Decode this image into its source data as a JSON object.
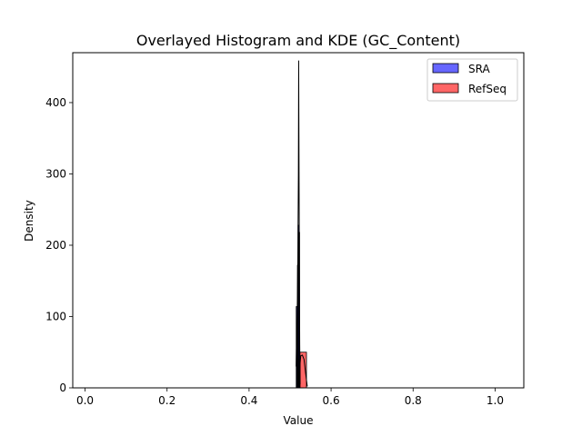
{
  "chart_data": {
    "type": "bar",
    "title": "Overlayed Histogram and KDE (GC_Content)",
    "xlabel": "Value",
    "ylabel": "Density",
    "xlim": [
      -0.03,
      1.07
    ],
    "ylim": [
      0,
      470
    ],
    "xticks": [
      0.0,
      0.2,
      0.4,
      0.6,
      0.8,
      1.0
    ],
    "xtick_labels": [
      "0.0",
      "0.2",
      "0.4",
      "0.6",
      "0.8",
      "1.0"
    ],
    "yticks": [
      0,
      100,
      200,
      300,
      400
    ],
    "ytick_labels": [
      "0",
      "100",
      "200",
      "300",
      "400"
    ],
    "legend": {
      "placement": "top-right"
    },
    "grid": false,
    "series": [
      {
        "name": "SRA",
        "color": "#0000ff",
        "bins": [
          {
            "x0": 0.515,
            "x1": 0.5165,
            "value": 114
          },
          {
            "x0": 0.5165,
            "x1": 0.518,
            "value": 60
          },
          {
            "x0": 0.518,
            "x1": 0.5195,
            "value": 172
          },
          {
            "x0": 0.5195,
            "x1": 0.521,
            "value": 228
          },
          {
            "x0": 0.521,
            "x1": 0.5225,
            "value": 218
          },
          {
            "x0": 0.5225,
            "x1": 0.524,
            "value": 40
          }
        ],
        "kde": [
          [
            0.5148,
            30
          ],
          [
            0.516,
            70
          ],
          [
            0.5175,
            110
          ],
          [
            0.519,
            180
          ],
          [
            0.5203,
            300
          ],
          [
            0.521,
            459
          ],
          [
            0.5216,
            350
          ],
          [
            0.5225,
            190
          ],
          [
            0.5235,
            60
          ],
          [
            0.5245,
            5
          ]
        ]
      },
      {
        "name": "RefSeq",
        "color": "#ff0000",
        "bins": [
          {
            "x0": 0.524,
            "x1": 0.54,
            "value": 50
          }
        ],
        "kde": [
          [
            0.52,
            2
          ],
          [
            0.523,
            25
          ],
          [
            0.526,
            45
          ],
          [
            0.53,
            46
          ],
          [
            0.534,
            40
          ],
          [
            0.538,
            20
          ],
          [
            0.542,
            2
          ]
        ]
      }
    ]
  }
}
